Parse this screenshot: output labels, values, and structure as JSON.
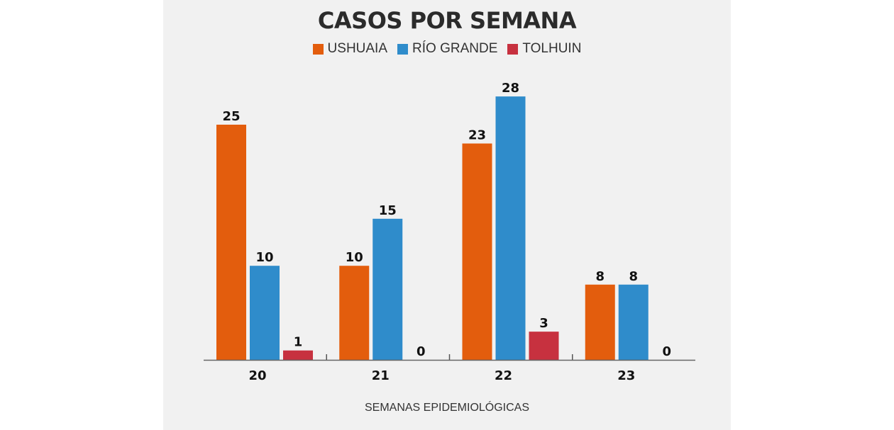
{
  "chart_data": {
    "type": "bar",
    "title": "CASOS POR SEMANA",
    "xlabel": "SEMANAS EPIDEMIOLÓGICAS",
    "ylabel": "",
    "categories": [
      "20",
      "21",
      "22",
      "23"
    ],
    "series": [
      {
        "name": "USHUAIA",
        "color": "#e35d0d",
        "values": [
          25,
          10,
          23,
          8
        ]
      },
      {
        "name": "RÍO GRANDE",
        "color": "#2f8ccb",
        "values": [
          10,
          15,
          28,
          8
        ]
      },
      {
        "name": "TOLHUIN",
        "color": "#c7313f",
        "values": [
          1,
          0,
          3,
          0
        ]
      }
    ],
    "ylim": [
      0,
      28
    ],
    "grid": false,
    "legend": "top-center",
    "data_labels": true
  }
}
